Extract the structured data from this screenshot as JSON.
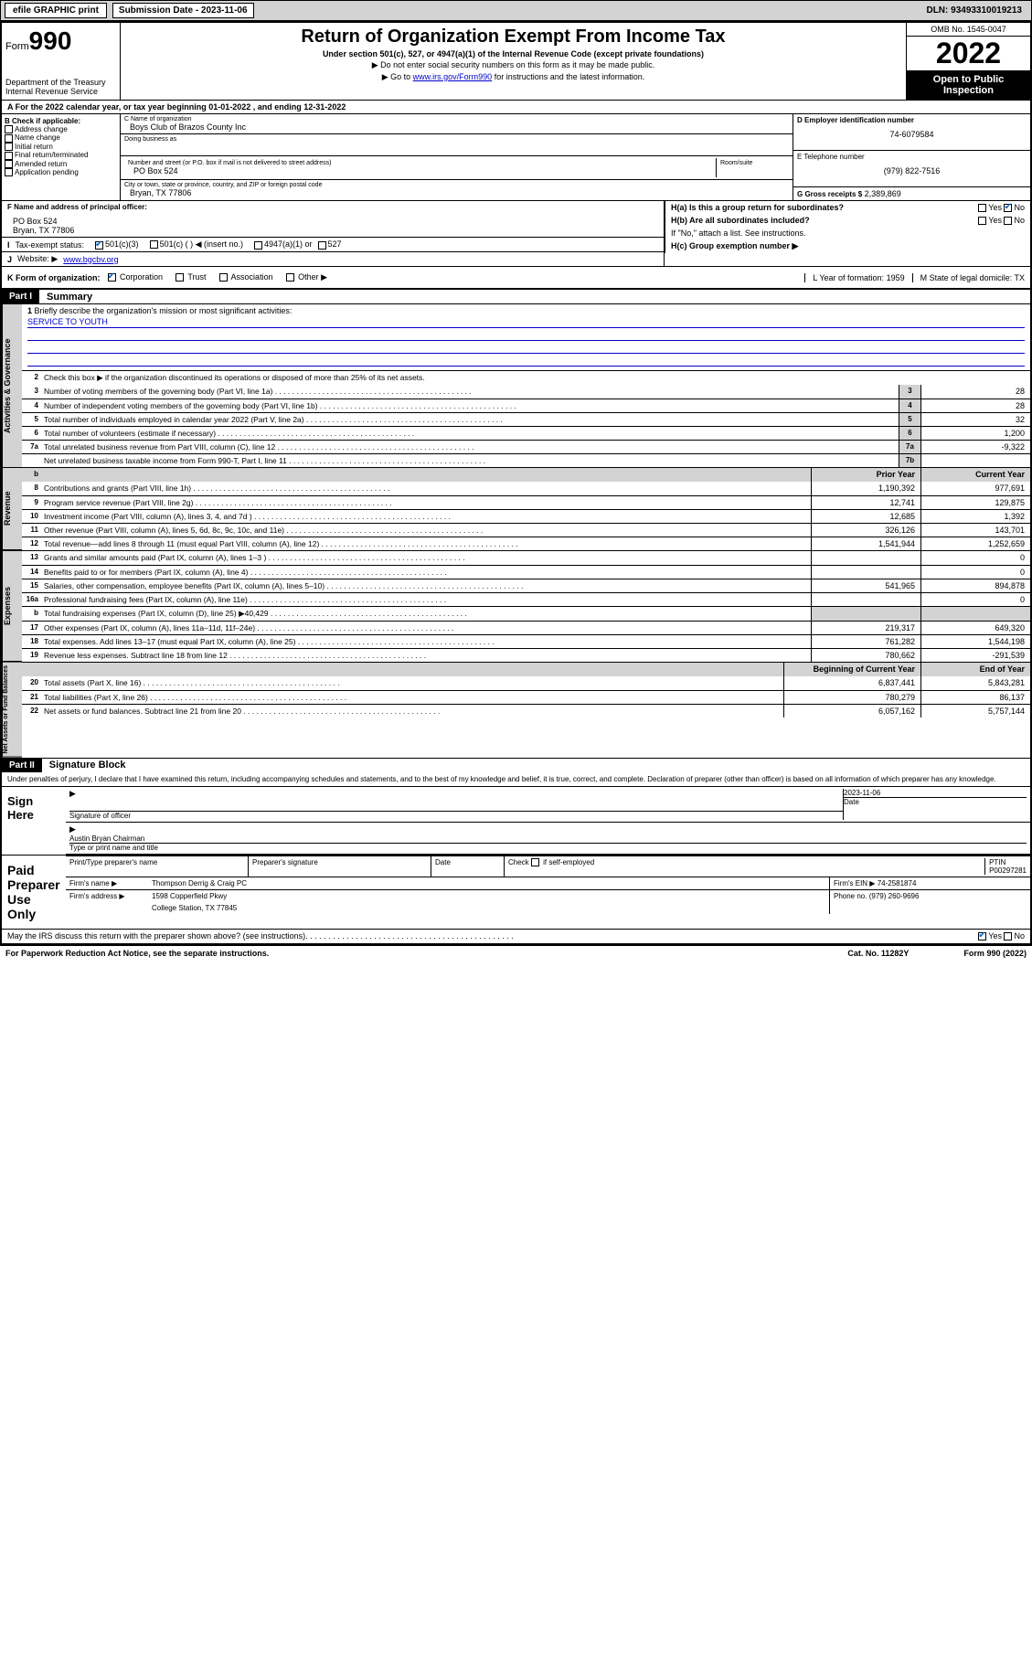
{
  "topbar": {
    "efile": "efile GRAPHIC print",
    "subdate_lbl": "Submission Date - 2023-11-06",
    "dln": "DLN: 93493310019213"
  },
  "header": {
    "form": "Form",
    "f990": "990",
    "dept": "Department of the Treasury",
    "irs": "Internal Revenue Service",
    "title": "Return of Organization Exempt From Income Tax",
    "sub1": "Under section 501(c), 527, or 4947(a)(1) of the Internal Revenue Code (except private foundations)",
    "sub2": "▶ Do not enter social security numbers on this form as it may be made public.",
    "sub3_pre": "▶ Go to ",
    "sub3_link": "www.irs.gov/Form990",
    "sub3_post": " for instructions and the latest information.",
    "omb": "OMB No. 1545-0047",
    "year": "2022",
    "otp": "Open to Public Inspection"
  },
  "rowA": "For the 2022 calendar year, or tax year beginning 01-01-2022    , and ending 12-31-2022",
  "boxB": {
    "hdr": "B Check if applicable:",
    "items": [
      "Address change",
      "Name change",
      "Initial return",
      "Final return/terminated",
      "Amended return",
      "Application pending"
    ]
  },
  "boxC": {
    "name_lbl": "C Name of organization",
    "name": "Boys Club of Brazos County Inc",
    "dba_lbl": "Doing business as",
    "dba": "",
    "street_lbl": "Number and street (or P.O. box if mail is not delivered to street address)",
    "room_lbl": "Room/suite",
    "street": "PO Box 524",
    "city_lbl": "City or town, state or province, country, and ZIP or foreign postal code",
    "city": "Bryan, TX  77806"
  },
  "boxD": {
    "lbl": "D Employer identification number",
    "val": "74-6079584"
  },
  "boxE": {
    "lbl": "E Telephone number",
    "val": "(979) 822-7516"
  },
  "boxG": {
    "lbl": "G Gross receipts $",
    "val": "2,389,869"
  },
  "boxF": {
    "lbl": "F  Name and address of principal officer:",
    "l1": "PO Box 524",
    "l2": "Bryan, TX  77806"
  },
  "boxH": {
    "a": "H(a)  Is this a group return for subordinates?",
    "b": "H(b)  Are all subordinates included?",
    "note": "If \"No,\" attach a list. See instructions.",
    "c": "H(c)  Group exemption number ▶"
  },
  "boxI": {
    "lbl": "Tax-exempt status:",
    "c1": "501(c)(3)",
    "c2": "501(c) (  ) ◀ (insert no.)",
    "c3": "4947(a)(1) or",
    "c4": "527"
  },
  "boxJ": {
    "lbl": "Website: ▶",
    "val": "www.bgcbv.org"
  },
  "boxK": "K Form of organization:",
  "k_opts": [
    "Corporation",
    "Trust",
    "Association",
    "Other ▶"
  ],
  "boxL": {
    "lbl": "L Year of formation: ",
    "val": "1959"
  },
  "boxM": {
    "lbl": "M State of legal domicile: ",
    "val": "TX"
  },
  "part1": {
    "hdr": "Part I",
    "title": "Summary"
  },
  "summary": {
    "q1": "Briefly describe the organization's mission or most significant activities:",
    "mission": "SERVICE TO YOUTH",
    "q2": "Check this box ▶         if the organization discontinued its operations or disposed of more than 25% of its net assets.",
    "sideA": "Activities & Governance",
    "sideR": "Revenue",
    "sideE": "Expenses",
    "sideN": "Net Assets or Fund Balances",
    "rows_gov": [
      {
        "n": "3",
        "t": "Number of voting members of the governing body (Part VI, line 1a)",
        "b": "3",
        "v": "28"
      },
      {
        "n": "4",
        "t": "Number of independent voting members of the governing body (Part VI, line 1b)",
        "b": "4",
        "v": "28"
      },
      {
        "n": "5",
        "t": "Total number of individuals employed in calendar year 2022 (Part V, line 2a)",
        "b": "5",
        "v": "32"
      },
      {
        "n": "6",
        "t": "Total number of volunteers (estimate if necessary)",
        "b": "6",
        "v": "1,200"
      },
      {
        "n": "7a",
        "t": "Total unrelated business revenue from Part VIII, column (C), line 12",
        "b": "7a",
        "v": "-9,322"
      },
      {
        "n": "",
        "t": "Net unrelated business taxable income from Form 990-T, Part I, line 11",
        "b": "7b",
        "v": ""
      }
    ],
    "col_prior": "Prior Year",
    "col_curr": "Current Year",
    "col_begin": "Beginning of Current Year",
    "col_end": "End of Year",
    "rows_rev": [
      {
        "n": "8",
        "t": "Contributions and grants (Part VIII, line 1h)",
        "p": "1,190,392",
        "c": "977,691"
      },
      {
        "n": "9",
        "t": "Program service revenue (Part VIII, line 2g)",
        "p": "12,741",
        "c": "129,875"
      },
      {
        "n": "10",
        "t": "Investment income (Part VIII, column (A), lines 3, 4, and 7d )",
        "p": "12,685",
        "c": "1,392"
      },
      {
        "n": "11",
        "t": "Other revenue (Part VIII, column (A), lines 5, 6d, 8c, 9c, 10c, and 11e)",
        "p": "326,126",
        "c": "143,701"
      },
      {
        "n": "12",
        "t": "Total revenue—add lines 8 through 11 (must equal Part VIII, column (A), line 12)",
        "p": "1,541,944",
        "c": "1,252,659"
      }
    ],
    "rows_exp": [
      {
        "n": "13",
        "t": "Grants and similar amounts paid (Part IX, column (A), lines 1–3 )",
        "p": "",
        "c": "0"
      },
      {
        "n": "14",
        "t": "Benefits paid to or for members (Part IX, column (A), line 4)",
        "p": "",
        "c": "0"
      },
      {
        "n": "15",
        "t": "Salaries, other compensation, employee benefits (Part IX, column (A), lines 5–10)",
        "p": "541,965",
        "c": "894,878"
      },
      {
        "n": "16a",
        "t": "Professional fundraising fees (Part IX, column (A), line 11e)",
        "p": "",
        "c": "0"
      },
      {
        "n": "b",
        "t": "Total fundraising expenses (Part IX, column (D), line 25) ▶40,429",
        "p": "GREY",
        "c": "GREY"
      },
      {
        "n": "17",
        "t": "Other expenses (Part IX, column (A), lines 11a–11d, 11f–24e)",
        "p": "219,317",
        "c": "649,320"
      },
      {
        "n": "18",
        "t": "Total expenses. Add lines 13–17 (must equal Part IX, column (A), line 25)",
        "p": "761,282",
        "c": "1,544,198"
      },
      {
        "n": "19",
        "t": "Revenue less expenses. Subtract line 18 from line 12",
        "p": "780,662",
        "c": "-291,539"
      }
    ],
    "rows_net": [
      {
        "n": "20",
        "t": "Total assets (Part X, line 16)",
        "p": "6,837,441",
        "c": "5,843,281"
      },
      {
        "n": "21",
        "t": "Total liabilities (Part X, line 26)",
        "p": "780,279",
        "c": "86,137"
      },
      {
        "n": "22",
        "t": "Net assets or fund balances. Subtract line 21 from line 20",
        "p": "6,057,162",
        "c": "5,757,144"
      }
    ]
  },
  "part2": {
    "hdr": "Part II",
    "title": "Signature Block"
  },
  "sig": {
    "decl": "Under penalties of perjury, I declare that I have examined this return, including accompanying schedules and statements, and to the best of my knowledge and belief, it is true, correct, and complete. Declaration of preparer (other than officer) is based on all information of which preparer has any knowledge.",
    "sign_here": "Sign Here",
    "sig_off": "Signature of officer",
    "date_lbl": "Date",
    "date_val": "2023-11-06",
    "officer": "Austin Bryan  Chairman",
    "type_name": "Type or print name and title",
    "paid": "Paid Preparer Use Only",
    "prep_name_lbl": "Print/Type preparer's name",
    "prep_sig_lbl": "Preparer's signature",
    "check_if": "Check          if self-employed",
    "ptin_lbl": "PTIN",
    "ptin": "P00297281",
    "firm_name_lbl": "Firm's name     ▶",
    "firm_name": "Thompson Derrig & Craig PC",
    "firm_ein_lbl": "Firm's EIN ▶",
    "firm_ein": "74-2581874",
    "firm_addr_lbl": "Firm's address ▶",
    "firm_addr1": "1598 Copperfield Pkwy",
    "firm_addr2": "College Station, TX  77845",
    "phone_lbl": "Phone no.",
    "phone": "(979) 260-9696",
    "may_irs": "May the IRS discuss this return with the preparer shown above? (see instructions)"
  },
  "footer": {
    "l": "For Paperwork Reduction Act Notice, see the separate instructions.",
    "m": "Cat. No. 11282Y",
    "r": "Form 990 (2022)"
  },
  "yesno": {
    "yes": "Yes",
    "no": "No"
  }
}
